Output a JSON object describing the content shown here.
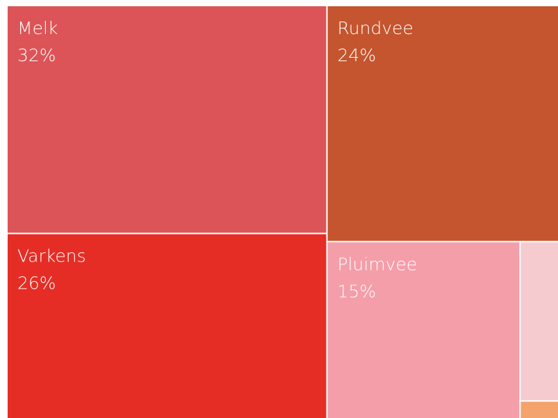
{
  "chart_data": {
    "type": "treemap",
    "categories": [
      "Melk",
      "Varkens",
      "Rundvee",
      "Pluimvee",
      null,
      null
    ],
    "values": [
      32,
      26,
      24,
      15,
      2.7,
      0.3
    ],
    "value_labels": [
      "32%",
      "26%",
      "24%",
      "15%",
      null,
      null
    ],
    "colors": [
      "#dc5457",
      "#e52d25",
      "#c4552e",
      "#f49ea9",
      "#f5cbd0",
      "#f4a26e"
    ]
  }
}
